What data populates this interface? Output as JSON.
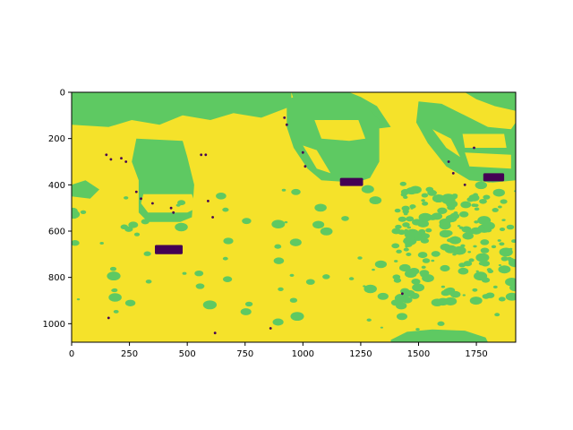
{
  "chart_data": {
    "type": "heatmap",
    "title": "",
    "xlabel": "",
    "ylabel": "",
    "xlim": [
      0,
      1920
    ],
    "ylim": [
      1080,
      0
    ],
    "x_ticks": [
      0,
      250,
      500,
      750,
      1000,
      1250,
      1500,
      1750
    ],
    "y_ticks": [
      0,
      200,
      400,
      600,
      800,
      1000
    ],
    "colormap": "viridis",
    "classes": [
      {
        "name": "class-0",
        "color": "#440154"
      },
      {
        "name": "class-1",
        "color": "#5ec962"
      },
      {
        "name": "class-2",
        "color": "#fde725"
      }
    ],
    "background_class_color": "#f5e22a",
    "regions_green": [
      {
        "label": "top-band-left",
        "x": [
          0,
          950
        ],
        "y": [
          0,
          160
        ]
      },
      {
        "label": "car-left-roof",
        "x": [
          270,
          520
        ],
        "y": [
          200,
          400
        ]
      },
      {
        "label": "car-left-window",
        "x": [
          310,
          540
        ],
        "y": [
          440,
          520
        ]
      },
      {
        "label": "car-center-body",
        "x": [
          900,
          1320
        ],
        "y": [
          0,
          380
        ]
      },
      {
        "label": "car-right-body",
        "x": [
          1500,
          1920
        ],
        "y": [
          0,
          380
        ]
      },
      {
        "label": "bottom-blob",
        "x": [
          1380,
          1800
        ],
        "y": [
          1020,
          1080
        ]
      }
    ],
    "regions_purple": [
      {
        "label": "plate-left",
        "x": [
          360,
          480
        ],
        "y": [
          660,
          700
        ]
      },
      {
        "label": "plate-center",
        "x": [
          1160,
          1260
        ],
        "y": [
          370,
          405
        ]
      },
      {
        "label": "plate-right",
        "x": [
          1780,
          1870
        ],
        "y": [
          350,
          385
        ]
      }
    ]
  }
}
